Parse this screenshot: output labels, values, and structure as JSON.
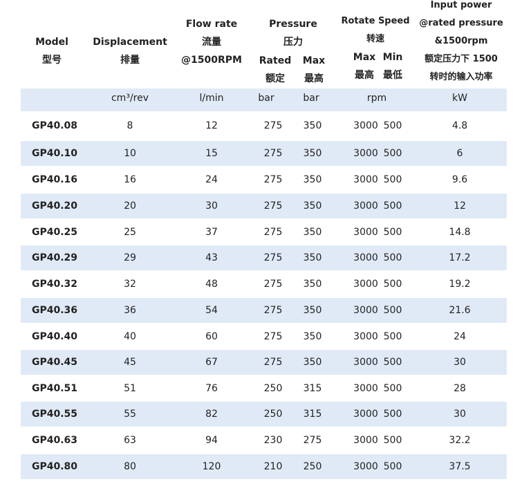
{
  "header": {
    "model": [
      "Model",
      "型号"
    ],
    "displacement": [
      "Displacement",
      "排量"
    ],
    "flow": [
      "Flow rate",
      "流量",
      "@1500RPM"
    ],
    "pressure": [
      "Pressure",
      "压力"
    ],
    "pressure_rated": [
      "Rated",
      "额定"
    ],
    "pressure_max": [
      "Max",
      "最高"
    ],
    "speed": [
      "Rotate Speed",
      "转速"
    ],
    "speed_max": [
      "Max",
      "最高"
    ],
    "speed_min": [
      "Min",
      "最低"
    ],
    "power": [
      "Input power",
      "@rated pressure",
      "&1500rpm",
      "额定压力下 1500",
      "转时的输入功率"
    ]
  },
  "units": {
    "displacement": "cm³/rev",
    "flow": "l/min",
    "rated": "bar",
    "max": "bar",
    "speed": "rpm",
    "power": "kW"
  },
  "rows": [
    {
      "model": "GP40.08",
      "disp": "8",
      "flow": "12",
      "rated": "275",
      "max": "350",
      "smax": "3000",
      "smin": "500",
      "power": "4.8"
    },
    {
      "model": "GP40.10",
      "disp": "10",
      "flow": "15",
      "rated": "275",
      "max": "350",
      "smax": "3000",
      "smin": "500",
      "power": "6"
    },
    {
      "model": "GP40.16",
      "disp": "16",
      "flow": "24",
      "rated": "275",
      "max": "350",
      "smax": "3000",
      "smin": "500",
      "power": "9.6"
    },
    {
      "model": "GP40.20",
      "disp": "20",
      "flow": "30",
      "rated": "275",
      "max": "350",
      "smax": "3000",
      "smin": "500",
      "power": "12"
    },
    {
      "model": "GP40.25",
      "disp": "25",
      "flow": "37",
      "rated": "275",
      "max": "350",
      "smax": "3000",
      "smin": "500",
      "power": "14.8"
    },
    {
      "model": "GP40.29",
      "disp": "29",
      "flow": "43",
      "rated": "275",
      "max": "350",
      "smax": "3000",
      "smin": "500",
      "power": "17.2"
    },
    {
      "model": "GP40.32",
      "disp": "32",
      "flow": "48",
      "rated": "275",
      "max": "350",
      "smax": "3000",
      "smin": "500",
      "power": "19.2"
    },
    {
      "model": "GP40.36",
      "disp": "36",
      "flow": "54",
      "rated": "275",
      "max": "350",
      "smax": "3000",
      "smin": "500",
      "power": "21.6"
    },
    {
      "model": "GP40.40",
      "disp": "40",
      "flow": "60",
      "rated": "275",
      "max": "350",
      "smax": "3000",
      "smin": "500",
      "power": "24"
    },
    {
      "model": "GP40.45",
      "disp": "45",
      "flow": "67",
      "rated": "275",
      "max": "350",
      "smax": "3000",
      "smin": "500",
      "power": "30"
    },
    {
      "model": "GP40.51",
      "disp": "51",
      "flow": "76",
      "rated": "250",
      "max": "315",
      "smax": "3000",
      "smin": "500",
      "power": "28"
    },
    {
      "model": "GP40.55",
      "disp": "55",
      "flow": "82",
      "rated": "250",
      "max": "315",
      "smax": "3000",
      "smin": "500",
      "power": "30"
    },
    {
      "model": "GP40.63",
      "disp": "63",
      "flow": "94",
      "rated": "230",
      "max": "275",
      "smax": "3000",
      "smin": "500",
      "power": "32.2"
    },
    {
      "model": "GP40.80",
      "disp": "80",
      "flow": "120",
      "rated": "210",
      "max": "250",
      "smax": "3000",
      "smin": "500",
      "power": "37.5"
    }
  ]
}
